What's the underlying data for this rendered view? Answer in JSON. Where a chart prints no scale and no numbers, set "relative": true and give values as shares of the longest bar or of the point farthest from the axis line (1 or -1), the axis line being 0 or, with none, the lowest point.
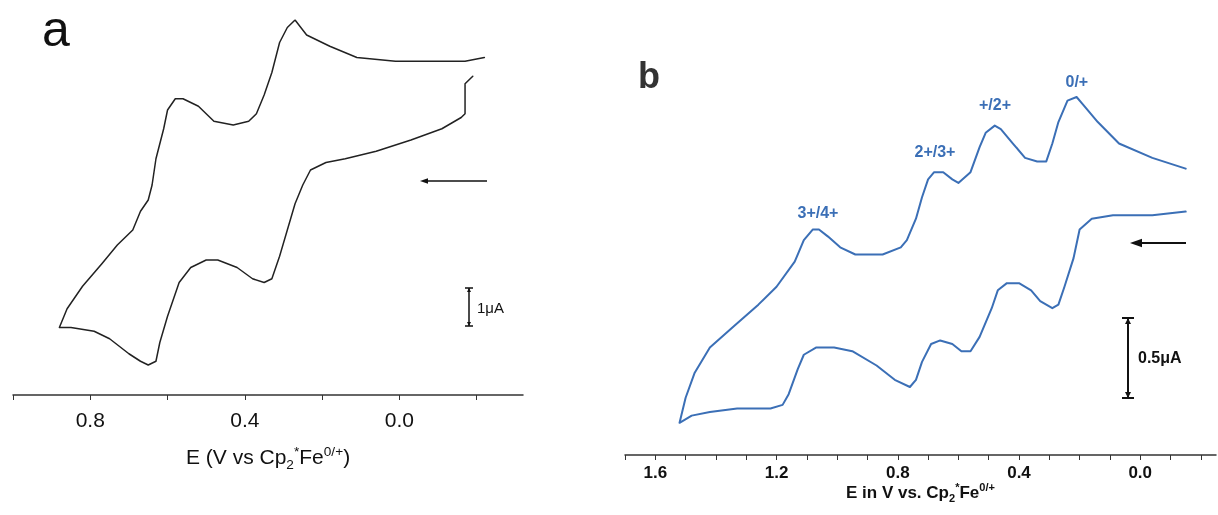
{
  "chart_data": [
    {
      "type": "line",
      "title": "a",
      "xlabel": "E (V vs Cp$_{2}$$^{*}$Fe$^{0/+}$)",
      "relative": true,
      "tick_labels": "x",
      "marker": "none",
      "line_style": "solid",
      "xlim": [
        1.0,
        -0.32
      ],
      "xticks": [
        {
          "value": 1.0,
          "label": null
        },
        {
          "value": 0.8,
          "label": "0.8"
        },
        {
          "value": 0.6,
          "label": null
        },
        {
          "value": 0.4,
          "label": "0.4"
        },
        {
          "value": 0.2,
          "label": null
        },
        {
          "value": 0.0,
          "label": "0.0"
        },
        {
          "value": -0.2,
          "label": null
        }
      ],
      "annotations": [
        "1μA"
      ],
      "series": [
        {
          "color": "#222222",
          "x": [
            -0.22,
            -0.17,
            -0.08,
            0.01,
            0.11,
            0.18,
            0.24,
            0.27,
            0.29,
            0.31,
            0.33,
            0.35,
            0.37,
            0.39,
            0.43,
            0.48,
            0.52,
            0.56,
            0.58,
            0.6,
            0.61,
            0.63,
            0.64,
            0.65,
            0.67,
            0.69,
            0.73,
            0.77,
            0.82,
            0.86,
            0.88,
            0.85,
            0.79,
            0.75,
            0.7,
            0.67,
            0.65,
            0.63,
            0.62,
            0.6,
            0.57,
            0.54,
            0.5,
            0.47,
            0.42,
            0.38,
            0.35,
            0.33,
            0.31,
            0.29,
            0.27,
            0.25,
            0.23,
            0.19,
            0.14,
            0.06,
            -0.03,
            -0.11,
            -0.16,
            -0.17,
            -0.17,
            -0.19
          ],
          "values": [
            0.9,
            0.89,
            0.89,
            0.89,
            0.9,
            0.93,
            0.96,
            1.0,
            0.98,
            0.94,
            0.86,
            0.8,
            0.75,
            0.73,
            0.72,
            0.73,
            0.77,
            0.79,
            0.79,
            0.76,
            0.71,
            0.63,
            0.56,
            0.52,
            0.49,
            0.44,
            0.4,
            0.35,
            0.29,
            0.23,
            0.18,
            0.18,
            0.17,
            0.15,
            0.11,
            0.09,
            0.08,
            0.09,
            0.14,
            0.21,
            0.3,
            0.34,
            0.36,
            0.36,
            0.34,
            0.31,
            0.3,
            0.31,
            0.37,
            0.44,
            0.51,
            0.56,
            0.6,
            0.62,
            0.63,
            0.65,
            0.68,
            0.71,
            0.74,
            0.75,
            0.83,
            0.85
          ]
        }
      ]
    },
    {
      "type": "line",
      "title": "b",
      "xlabel": "E in V vs. Cp$_{2}$$^{*}$Fe$^{0/+}$",
      "relative": true,
      "tick_labels": "x",
      "marker": "none",
      "line_style": "solid",
      "xlim": [
        1.7,
        -0.25
      ],
      "xticks": [
        {
          "value": 1.7,
          "label": null
        },
        {
          "value": 1.6,
          "label": "1.6"
        },
        {
          "value": 1.5,
          "label": null
        },
        {
          "value": 1.4,
          "label": null
        },
        {
          "value": 1.3,
          "label": null
        },
        {
          "value": 1.2,
          "label": "1.2"
        },
        {
          "value": 1.1,
          "label": null
        },
        {
          "value": 1.0,
          "label": null
        },
        {
          "value": 0.9,
          "label": null
        },
        {
          "value": 0.8,
          "label": "0.8"
        },
        {
          "value": 0.7,
          "label": null
        },
        {
          "value": 0.6,
          "label": null
        },
        {
          "value": 0.5,
          "label": null
        },
        {
          "value": 0.4,
          "label": "0.4"
        },
        {
          "value": 0.3,
          "label": null
        },
        {
          "value": 0.2,
          "label": null
        },
        {
          "value": 0.1,
          "label": null
        },
        {
          "value": 0.0,
          "label": "0.0"
        },
        {
          "value": -0.1,
          "label": null
        },
        {
          "value": -0.2,
          "label": null
        }
      ],
      "annotations": [
        "0/+",
        "+/2+",
        "2+/3+",
        "3+/4+",
        "0.5μA"
      ],
      "series": [
        {
          "color": "#3b6fb6",
          "x": [
            -0.15,
            -0.04,
            0.07,
            0.14,
            0.19,
            0.21,
            0.24,
            0.27,
            0.29,
            0.31,
            0.34,
            0.38,
            0.42,
            0.46,
            0.48,
            0.51,
            0.53,
            0.56,
            0.6,
            0.62,
            0.65,
            0.68,
            0.7,
            0.72,
            0.74,
            0.77,
            0.79,
            0.85,
            0.88,
            0.94,
            0.99,
            1.03,
            1.06,
            1.08,
            1.11,
            1.14,
            1.2,
            1.26,
            1.34,
            1.42,
            1.47,
            1.5,
            1.52,
            1.48,
            1.42,
            1.33,
            1.22,
            1.18,
            1.16,
            1.13,
            1.11,
            1.07,
            1.01,
            0.95,
            0.87,
            0.81,
            0.76,
            0.74,
            0.72,
            0.69,
            0.66,
            0.62,
            0.59,
            0.56,
            0.53,
            0.49,
            0.47,
            0.44,
            0.4,
            0.36,
            0.33,
            0.29,
            0.27,
            0.25,
            0.22,
            0.2,
            0.16,
            0.09,
            -0.04,
            -0.15
          ],
          "values": [
            0.8,
            0.83,
            0.87,
            0.93,
            0.98,
            1.0,
            0.99,
            0.93,
            0.87,
            0.82,
            0.82,
            0.83,
            0.87,
            0.91,
            0.92,
            0.9,
            0.86,
            0.79,
            0.76,
            0.77,
            0.79,
            0.79,
            0.77,
            0.72,
            0.66,
            0.6,
            0.58,
            0.56,
            0.56,
            0.56,
            0.58,
            0.61,
            0.63,
            0.63,
            0.6,
            0.54,
            0.47,
            0.42,
            0.36,
            0.3,
            0.23,
            0.16,
            0.09,
            0.11,
            0.12,
            0.13,
            0.13,
            0.14,
            0.17,
            0.24,
            0.28,
            0.3,
            0.3,
            0.29,
            0.25,
            0.21,
            0.19,
            0.21,
            0.26,
            0.31,
            0.32,
            0.31,
            0.29,
            0.29,
            0.33,
            0.41,
            0.46,
            0.48,
            0.48,
            0.46,
            0.43,
            0.41,
            0.42,
            0.47,
            0.55,
            0.63,
            0.66,
            0.67,
            0.67,
            0.68
          ]
        }
      ]
    }
  ]
}
